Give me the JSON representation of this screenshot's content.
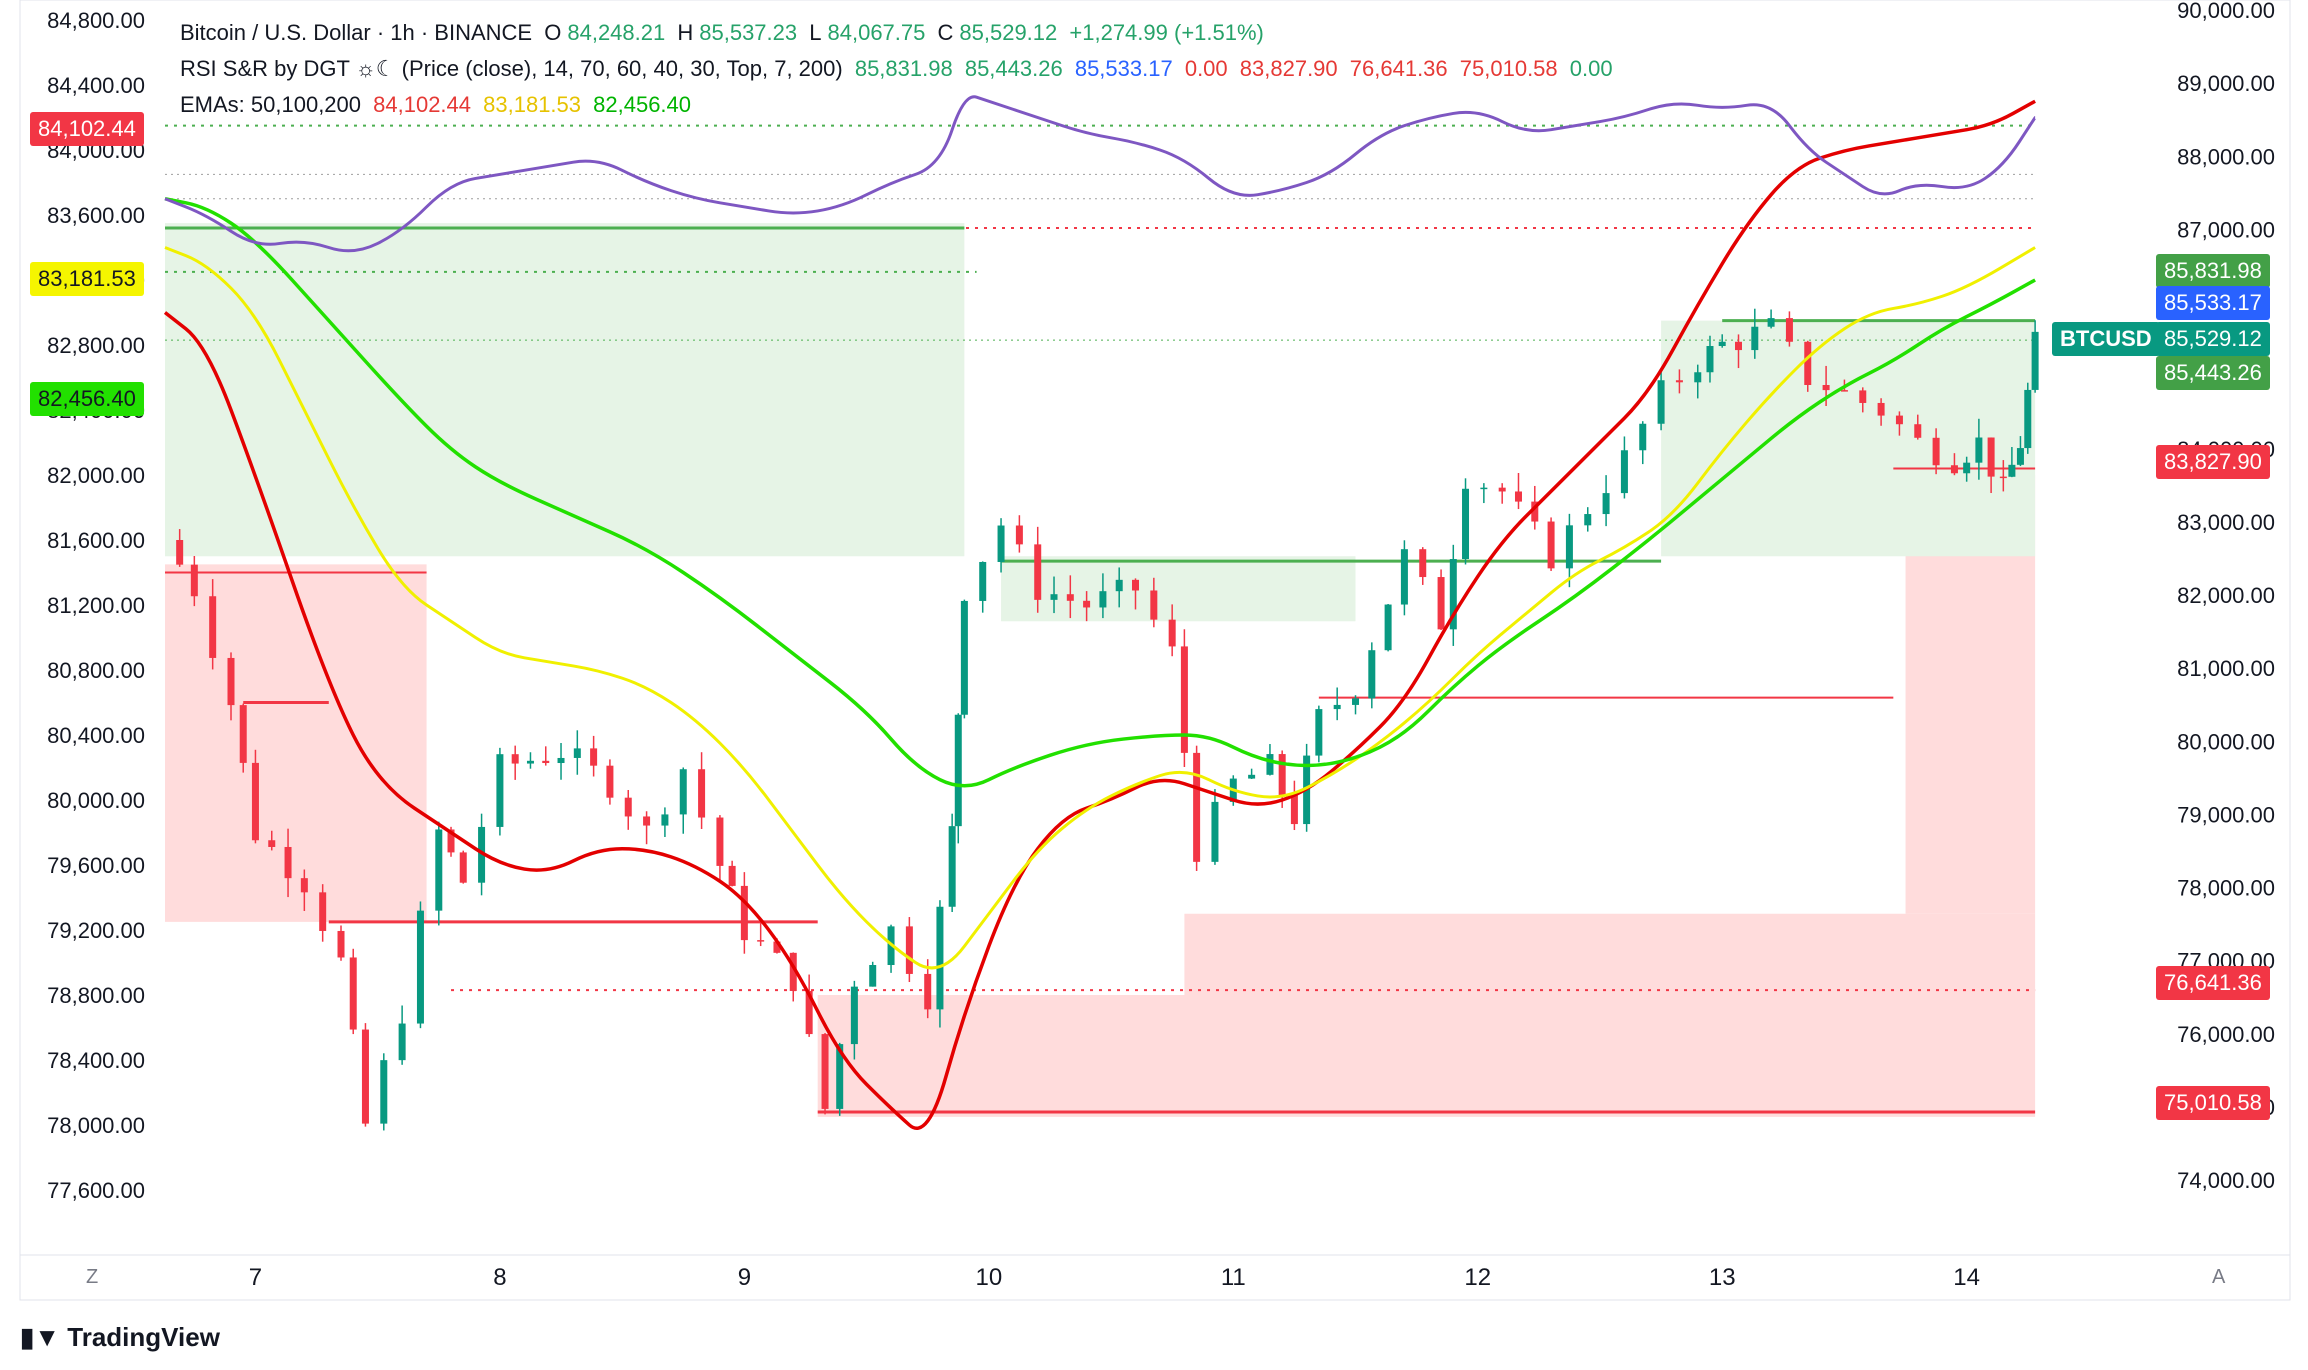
{
  "header": {
    "line1": {
      "title": "Bitcoin / U.S. Dollar · 1h · BINANCE",
      "o_label": "O",
      "o": "84,248.21",
      "h_label": "H",
      "h": "85,537.23",
      "l_label": "L",
      "l": "84,067.75",
      "c_label": "C",
      "c": "85,529.12",
      "change": "+1,274.99 (+1.51%)"
    },
    "line2": {
      "title": "RSI S&R by DGT ☼☾ (Price (close), 14, 70, 60, 40, 30, Top, 7, 200)",
      "v1": "85,831.98",
      "v2": "85,443.26",
      "v3": "85,533.17",
      "v4": "0.00",
      "v5": "83,827.90",
      "v6": "76,641.36",
      "v7": "75,010.58",
      "v8": "0.00"
    },
    "line3": {
      "title": "EMAs: 50,100,200",
      "ema50": "84,102.44",
      "ema100": "83,181.53",
      "ema200": "82,456.40"
    }
  },
  "colors": {
    "up": "#089981",
    "down": "#f23645",
    "ema50": "#e30000",
    "ema100": "#f0f000",
    "ema200": "#22e000",
    "rsi": "#7e57c2",
    "support": "#ffdcdc",
    "resistance": "#e6f4e6"
  },
  "chart_data": {
    "type": "line",
    "symbol": "BTCUSD",
    "left_axis": {
      "ticks": [
        "84,800.00",
        "84,400.00",
        "84,000.00",
        "83,600.00",
        "83,200.00",
        "82,800.00",
        "82,400.00",
        "82,000.00",
        "81,600.00",
        "81,200.00",
        "80,800.00",
        "80,400.00",
        "80,000.00",
        "79,600.00",
        "79,200.00",
        "78,800.00",
        "78,400.00",
        "78,000.00",
        "77,600.00"
      ],
      "range": [
        77600,
        84800
      ]
    },
    "right_axis": {
      "ticks": [
        "90,000.00",
        "89,000.00",
        "88,000.00",
        "87,000.00",
        "84,000.00",
        "83,000.00",
        "82,000.00",
        "81,000.00",
        "80,000.00",
        "79,000.00",
        "78,000.00",
        "77,000.00",
        "76,000.00",
        "75,000.00",
        "74,000.00"
      ],
      "range": [
        74000,
        90000
      ]
    },
    "x_ticks": [
      "7",
      "8",
      "9",
      "10",
      "11",
      "12",
      "13",
      "14"
    ],
    "x_range_days": [
      6.63,
      14.3
    ],
    "ema_labels_left": {
      "ema50": "84,102.44",
      "ema100": "83,181.53",
      "ema200": "82,456.40"
    },
    "price_labels_right": [
      {
        "text": "85,831.98",
        "kind": "resistance"
      },
      {
        "text": "85,533.17",
        "kind": "blue"
      },
      {
        "text": "85,529.12",
        "kind": "last"
      },
      {
        "text": "85,443.26",
        "kind": "resistance"
      },
      {
        "text": "83,827.90",
        "kind": "support"
      },
      {
        "text": "76,641.36",
        "kind": "support"
      },
      {
        "text": "75,010.58",
        "kind": "support"
      }
    ],
    "last_label": "BTCUSD",
    "series": [
      {
        "key": "ema50",
        "points": [
          [
            6.63,
            83000
          ],
          [
            6.8,
            82800
          ],
          [
            7,
            82000
          ],
          [
            7.3,
            80700
          ],
          [
            7.5,
            80100
          ],
          [
            7.8,
            79800
          ],
          [
            8,
            79600
          ],
          [
            8.2,
            79550
          ],
          [
            8.4,
            79700
          ],
          [
            8.6,
            79700
          ],
          [
            8.8,
            79600
          ],
          [
            9,
            79400
          ],
          [
            9.2,
            79000
          ],
          [
            9.4,
            78400
          ],
          [
            9.6,
            78100
          ],
          [
            9.75,
            77900
          ],
          [
            9.9,
            78700
          ],
          [
            10.1,
            79500
          ],
          [
            10.3,
            79900
          ],
          [
            10.5,
            80000
          ],
          [
            10.7,
            80150
          ],
          [
            10.9,
            80050
          ],
          [
            11.1,
            79950
          ],
          [
            11.3,
            80050
          ],
          [
            11.5,
            80300
          ],
          [
            11.7,
            80600
          ],
          [
            11.9,
            81150
          ],
          [
            12.1,
            81600
          ],
          [
            12.3,
            81900
          ],
          [
            12.5,
            82200
          ],
          [
            12.7,
            82500
          ],
          [
            12.9,
            83050
          ],
          [
            13.1,
            83550
          ],
          [
            13.3,
            83900
          ],
          [
            13.5,
            84000
          ],
          [
            13.7,
            84050
          ],
          [
            13.9,
            84100
          ],
          [
            14.1,
            84150
          ],
          [
            14.28,
            84300
          ]
        ]
      },
      {
        "key": "ema100",
        "points": [
          [
            6.63,
            83400
          ],
          [
            6.8,
            83300
          ],
          [
            7,
            83000
          ],
          [
            7.2,
            82400
          ],
          [
            7.4,
            81800
          ],
          [
            7.6,
            81300
          ],
          [
            7.8,
            81100
          ],
          [
            8,
            80900
          ],
          [
            8.2,
            80850
          ],
          [
            8.4,
            80800
          ],
          [
            8.6,
            80700
          ],
          [
            8.8,
            80500
          ],
          [
            9,
            80200
          ],
          [
            9.2,
            79800
          ],
          [
            9.4,
            79400
          ],
          [
            9.6,
            79100
          ],
          [
            9.8,
            78900
          ],
          [
            10,
            79300
          ],
          [
            10.2,
            79700
          ],
          [
            10.4,
            79950
          ],
          [
            10.6,
            80100
          ],
          [
            10.8,
            80200
          ],
          [
            11,
            80050
          ],
          [
            11.2,
            80000
          ],
          [
            11.4,
            80150
          ],
          [
            11.6,
            80350
          ],
          [
            11.8,
            80600
          ],
          [
            12,
            80900
          ],
          [
            12.2,
            81150
          ],
          [
            12.4,
            81400
          ],
          [
            12.6,
            81550
          ],
          [
            12.8,
            81750
          ],
          [
            13,
            82150
          ],
          [
            13.2,
            82500
          ],
          [
            13.4,
            82800
          ],
          [
            13.6,
            83000
          ],
          [
            13.8,
            83050
          ],
          [
            14,
            83150
          ],
          [
            14.28,
            83400
          ]
        ]
      },
      {
        "key": "ema200",
        "points": [
          [
            6.63,
            83700
          ],
          [
            6.8,
            83650
          ],
          [
            7,
            83450
          ],
          [
            7.3,
            82950
          ],
          [
            7.6,
            82450
          ],
          [
            7.8,
            82150
          ],
          [
            8,
            81950
          ],
          [
            8.3,
            81750
          ],
          [
            8.6,
            81550
          ],
          [
            8.9,
            81250
          ],
          [
            9.2,
            80900
          ],
          [
            9.5,
            80550
          ],
          [
            9.7,
            80200
          ],
          [
            9.9,
            80050
          ],
          [
            10.1,
            80200
          ],
          [
            10.4,
            80350
          ],
          [
            10.7,
            80400
          ],
          [
            10.9,
            80400
          ],
          [
            11.1,
            80250
          ],
          [
            11.3,
            80200
          ],
          [
            11.5,
            80250
          ],
          [
            11.7,
            80400
          ],
          [
            11.9,
            80700
          ],
          [
            12.1,
            80950
          ],
          [
            12.4,
            81250
          ],
          [
            12.7,
            81600
          ],
          [
            12.9,
            81850
          ],
          [
            13.1,
            82100
          ],
          [
            13.3,
            82350
          ],
          [
            13.5,
            82550
          ],
          [
            13.7,
            82700
          ],
          [
            13.9,
            82900
          ],
          [
            14.1,
            83050
          ],
          [
            14.28,
            83200
          ]
        ]
      },
      {
        "key": "rsi",
        "points": [
          [
            6.63,
            83700
          ],
          [
            6.8,
            83600
          ],
          [
            7,
            83400
          ],
          [
            7.2,
            83450
          ],
          [
            7.4,
            83350
          ],
          [
            7.6,
            83500
          ],
          [
            7.8,
            83800
          ],
          [
            8,
            83850
          ],
          [
            8.2,
            83900
          ],
          [
            8.4,
            83950
          ],
          [
            8.6,
            83800
          ],
          [
            8.8,
            83700
          ],
          [
            9,
            83650
          ],
          [
            9.2,
            83600
          ],
          [
            9.4,
            83650
          ],
          [
            9.6,
            83800
          ],
          [
            9.8,
            83900
          ],
          [
            9.9,
            84350
          ],
          [
            10,
            84300
          ],
          [
            10.2,
            84200
          ],
          [
            10.4,
            84100
          ],
          [
            10.6,
            84050
          ],
          [
            10.8,
            83950
          ],
          [
            11,
            83700
          ],
          [
            11.2,
            83750
          ],
          [
            11.4,
            83850
          ],
          [
            11.6,
            84100
          ],
          [
            11.8,
            84200
          ],
          [
            12,
            84250
          ],
          [
            12.2,
            84100
          ],
          [
            12.4,
            84150
          ],
          [
            12.6,
            84200
          ],
          [
            12.8,
            84300
          ],
          [
            13,
            84250
          ],
          [
            13.2,
            84300
          ],
          [
            13.35,
            84000
          ],
          [
            13.5,
            83850
          ],
          [
            13.65,
            83700
          ],
          [
            13.8,
            83800
          ],
          [
            14,
            83750
          ],
          [
            14.15,
            83900
          ],
          [
            14.28,
            84200
          ]
        ]
      }
    ],
    "candles_daily_path": [
      [
        6.63,
        81600
      ],
      [
        6.75,
        81300
      ],
      [
        6.9,
        80600
      ],
      [
        7.0,
        79800
      ],
      [
        7.2,
        79500
      ],
      [
        7.35,
        79000
      ],
      [
        7.45,
        78000
      ],
      [
        7.6,
        78700
      ],
      [
        7.75,
        79800
      ],
      [
        7.85,
        79500
      ],
      [
        8.0,
        80200
      ],
      [
        8.25,
        80300
      ],
      [
        8.45,
        80100
      ],
      [
        8.6,
        79800
      ],
      [
        8.75,
        80200
      ],
      [
        8.9,
        79600
      ],
      [
        9.0,
        79200
      ],
      [
        9.2,
        78900
      ],
      [
        9.33,
        78100
      ],
      [
        9.45,
        78900
      ],
      [
        9.6,
        79200
      ],
      [
        9.75,
        78800
      ],
      [
        9.85,
        79800
      ],
      [
        9.9,
        81300
      ],
      [
        10.05,
        81700
      ],
      [
        10.2,
        81300
      ],
      [
        10.4,
        81200
      ],
      [
        10.6,
        81300
      ],
      [
        10.75,
        80900
      ],
      [
        10.85,
        79700
      ],
      [
        11.0,
        80100
      ],
      [
        11.15,
        80200
      ],
      [
        11.25,
        79900
      ],
      [
        11.35,
        80500
      ],
      [
        11.5,
        80700
      ],
      [
        11.7,
        81500
      ],
      [
        11.85,
        81100
      ],
      [
        11.95,
        82000
      ],
      [
        12.1,
        81900
      ],
      [
        12.3,
        81500
      ],
      [
        12.45,
        81800
      ],
      [
        12.6,
        82100
      ],
      [
        12.75,
        82500
      ],
      [
        12.9,
        82700
      ],
      [
        13.0,
        82800
      ],
      [
        13.2,
        82900
      ],
      [
        13.35,
        82600
      ],
      [
        13.5,
        82500
      ],
      [
        13.65,
        82400
      ],
      [
        13.8,
        82200
      ],
      [
        13.95,
        82100
      ],
      [
        14.05,
        82200
      ],
      [
        14.15,
        81900
      ],
      [
        14.22,
        82200
      ],
      [
        14.28,
        82800
      ]
    ]
  }
}
